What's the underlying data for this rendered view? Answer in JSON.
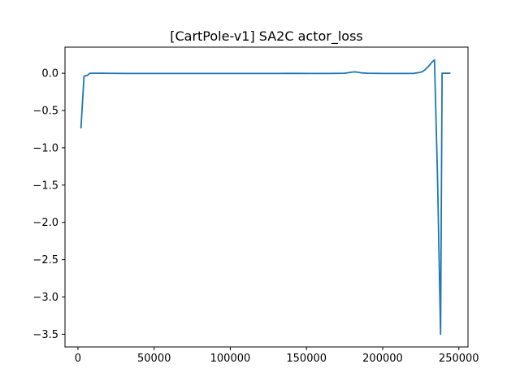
{
  "chart_data": {
    "type": "line",
    "title": "[CartPole-v1] SA2C actor_loss",
    "xlabel": "",
    "ylabel": "",
    "xlim": [
      -8500,
      256000
    ],
    "ylim": [
      -3.67,
      0.35
    ],
    "x_ticks": [
      {
        "value": 0,
        "label": "0"
      },
      {
        "value": 50000,
        "label": "50000"
      },
      {
        "value": 100000,
        "label": "100000"
      },
      {
        "value": 150000,
        "label": "150000"
      },
      {
        "value": 200000,
        "label": "200000"
      },
      {
        "value": 250000,
        "label": "250000"
      }
    ],
    "y_ticks": [
      {
        "value": 0.0,
        "label": "0.0"
      },
      {
        "value": -0.5,
        "label": "−0.5"
      },
      {
        "value": -1.0,
        "label": "−1.0"
      },
      {
        "value": -1.5,
        "label": "−1.5"
      },
      {
        "value": -2.0,
        "label": "−2.0"
      },
      {
        "value": -2.5,
        "label": "−2.5"
      },
      {
        "value": -3.0,
        "label": "−3.0"
      },
      {
        "value": -3.5,
        "label": "−3.5"
      }
    ],
    "grid": false,
    "legend": "none",
    "series": [
      {
        "color": "#1f77b4",
        "x": [
          2000,
          4000,
          6000,
          8000,
          10000,
          15000,
          30000,
          60000,
          100000,
          130000,
          140000,
          165000,
          175000,
          180000,
          182000,
          186000,
          190000,
          200000,
          220000,
          224000,
          226000,
          228000,
          230000,
          232000,
          234000,
          236000,
          238000,
          239000,
          240000,
          242000,
          244000
        ],
        "y": [
          -0.73,
          -0.04,
          -0.03,
          0.0,
          0.0,
          0.0,
          -0.003,
          -0.003,
          -0.003,
          -0.003,
          -0.002,
          -0.003,
          0.0,
          0.015,
          0.018,
          0.005,
          0.0,
          -0.003,
          -0.003,
          0.01,
          0.02,
          0.05,
          0.09,
          0.14,
          0.18,
          -1.4,
          -3.5,
          0.0,
          0.0,
          0.0,
          0.0
        ]
      }
    ]
  }
}
